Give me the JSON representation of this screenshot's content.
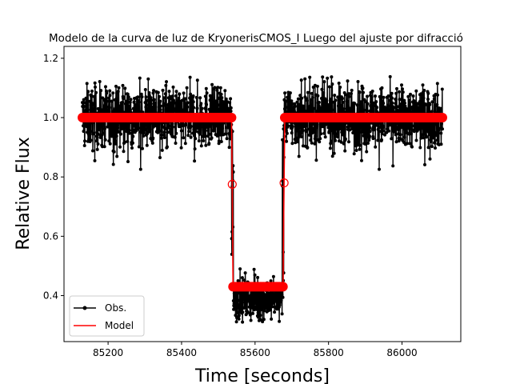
{
  "chart_data": {
    "type": "line",
    "title": "Modelo de la curva de luz de KryonerisCMOS_I Luego del ajuste por difracció",
    "xlabel": "Time [seconds]",
    "ylabel": "Relative Flux",
    "xlim": [
      85080,
      86160
    ],
    "ylim": [
      0.245,
      1.24
    ],
    "xticks": [
      85200,
      85400,
      85600,
      85800,
      86000
    ],
    "yticks": [
      0.4,
      0.6,
      0.8,
      1.0,
      1.2
    ],
    "xtick_labels": [
      "85200",
      "85400",
      "85600",
      "85800",
      "86000"
    ],
    "ytick_labels": [
      "0.4",
      "0.6",
      "0.8",
      "1.0",
      "1.2"
    ],
    "legend_position": "lower-left",
    "grid": false,
    "colors": {
      "obs": "#000000",
      "model": "#ff0000"
    },
    "series": [
      {
        "name": "Obs.",
        "kind": "noisy-observations",
        "color": "#000000",
        "x_range": [
          85130,
          86110
        ],
        "baseline_level": 1.0,
        "baseline_scatter": [
          0.82,
          1.16
        ],
        "occultation_level": 0.39,
        "occultation_scatter": [
          0.29,
          0.49
        ],
        "ingress_x": 85537,
        "egress_x": 85678
      },
      {
        "name": "Model",
        "kind": "step-model",
        "color": "#ff0000",
        "x": [
          85130,
          85536,
          85538,
          85540,
          85676,
          85679,
          85681,
          86110
        ],
        "y": [
          1.0,
          1.0,
          0.775,
          0.43,
          0.43,
          0.78,
          1.0,
          1.0
        ]
      }
    ]
  }
}
